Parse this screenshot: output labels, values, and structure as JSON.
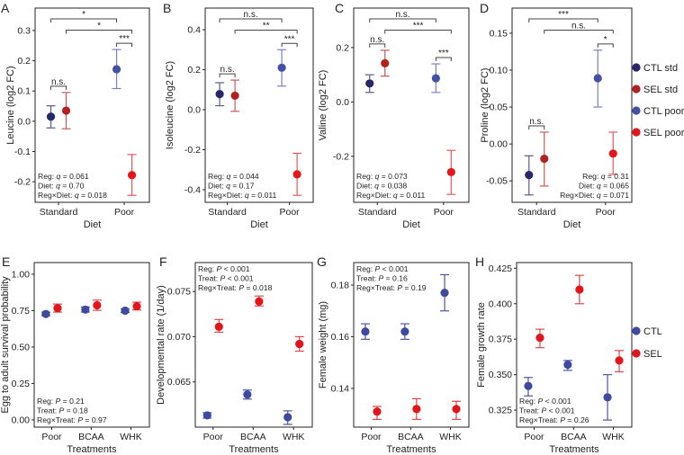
{
  "groups": {
    "CTL std": {
      "color": "#27276b",
      "bar": "#5a5a8e"
    },
    "SEL std": {
      "color": "#b3211f",
      "bar": "#c85a55"
    },
    "CTL poor": {
      "color": "#4350a3",
      "bar": "#7a82bd"
    },
    "SEL poor": {
      "color": "#e3161b",
      "bar": "#e85a5c"
    },
    "CTL": {
      "color": "#3d4aa0",
      "bar": "#4b57a6"
    },
    "SEL": {
      "color": "#e3151b",
      "bar": "#e0474a"
    }
  },
  "legends": {
    "top": [
      "CTL std",
      "SEL std",
      "CTL poor",
      "SEL poor"
    ],
    "bottom": [
      "CTL",
      "SEL"
    ]
  },
  "chart_data": [
    {
      "panel": "A",
      "type": "scatter",
      "ylabel": "Leucine (log2 FC)",
      "xlabel": "Diet",
      "categories": [
        "Standard",
        "Poor"
      ],
      "ylim": [
        -0.268,
        0.374
      ],
      "yticks": [
        -0.2,
        -0.1,
        0.0,
        0.1,
        0.2,
        0.3
      ],
      "ytick_labels": [
        "-0.2",
        "-0.1",
        "0.0",
        "0.1",
        "0.2",
        "0.3"
      ],
      "points": [
        {
          "group": "CTL std",
          "category": 0,
          "mean": 0.015,
          "lo": -0.022,
          "hi": 0.051
        },
        {
          "group": "SEL std",
          "category": 0,
          "mean": 0.035,
          "lo": -0.025,
          "hi": 0.095
        },
        {
          "group": "CTL poor",
          "category": 1,
          "mean": 0.172,
          "lo": 0.108,
          "hi": 0.237
        },
        {
          "group": "SEL poor",
          "category": 1,
          "mean": -0.178,
          "lo": -0.245,
          "hi": -0.11
        }
      ],
      "brackets": [
        {
          "label": "*",
          "from": 0,
          "to": 2
        },
        {
          "label": "*",
          "from": 1,
          "to": 3
        },
        {
          "label": "***",
          "from": 2,
          "to": 3
        },
        {
          "label": "n.s.",
          "from": 0,
          "to": 1
        }
      ],
      "stats_position": "bottom-left",
      "stats": [
        {
          "term": "Reg: ",
          "sym": "q",
          "value": " = 0.061"
        },
        {
          "term": "Diet: ",
          "sym": "q",
          "value": " = 0.70"
        },
        {
          "term": "Reg×Diet: ",
          "sym": "q",
          "value": " = 0.018"
        }
      ]
    },
    {
      "panel": "B",
      "type": "scatter",
      "ylabel": "Isoleucine (log2 FC)",
      "xlabel": "Diet",
      "categories": [
        "Standard",
        "Poor"
      ],
      "ylim": [
        -0.463,
        0.508
      ],
      "yticks": [
        -0.4,
        -0.2,
        0.0,
        0.2,
        0.4
      ],
      "ytick_labels": [
        "-0.4",
        "-0.2",
        "0.0",
        "0.2",
        "0.4"
      ],
      "points": [
        {
          "group": "CTL std",
          "category": 0,
          "mean": 0.078,
          "lo": 0.02,
          "hi": 0.135
        },
        {
          "group": "SEL std",
          "category": 0,
          "mean": 0.07,
          "lo": -0.008,
          "hi": 0.148
        },
        {
          "group": "CTL poor",
          "category": 1,
          "mean": 0.21,
          "lo": 0.118,
          "hi": 0.3
        },
        {
          "group": "SEL poor",
          "category": 1,
          "mean": -0.323,
          "lo": -0.428,
          "hi": -0.218
        }
      ],
      "brackets": [
        {
          "label": "n.s.",
          "from": 0,
          "to": 2
        },
        {
          "label": "**",
          "from": 1,
          "to": 3
        },
        {
          "label": "***",
          "from": 2,
          "to": 3
        },
        {
          "label": "n.s.",
          "from": 0,
          "to": 1
        }
      ],
      "stats_position": "bottom-left",
      "stats": [
        {
          "term": "Reg: ",
          "sym": "q",
          "value": " = 0.044"
        },
        {
          "term": "Diet: ",
          "sym": "q",
          "value": " = 0.17"
        },
        {
          "term": "Reg×Diet: ",
          "sym": "q",
          "value": " = 0.011"
        }
      ]
    },
    {
      "panel": "C",
      "type": "scatter",
      "ylabel": "Valine (log2 FC)",
      "xlabel": "Diet",
      "categories": [
        "Standard",
        "Poor"
      ],
      "ylim": [
        -0.369,
        0.345
      ],
      "yticks": [
        -0.2,
        0.0,
        0.2
      ],
      "ytick_labels": [
        "-0.2",
        "0.0",
        "0.2"
      ],
      "points": [
        {
          "group": "CTL std",
          "category": 0,
          "mean": 0.068,
          "lo": 0.035,
          "hi": 0.1
        },
        {
          "group": "SEL std",
          "category": 0,
          "mean": 0.142,
          "lo": 0.095,
          "hi": 0.19
        },
        {
          "group": "CTL poor",
          "category": 1,
          "mean": 0.087,
          "lo": 0.035,
          "hi": 0.14
        },
        {
          "group": "SEL poor",
          "category": 1,
          "mean": -0.258,
          "lo": -0.34,
          "hi": -0.178
        }
      ],
      "brackets": [
        {
          "label": "n.s.",
          "from": 0,
          "to": 2
        },
        {
          "label": "***",
          "from": 1,
          "to": 3
        },
        {
          "label": "***",
          "from": 2,
          "to": 3
        },
        {
          "label": "n.s.",
          "from": 0,
          "to": 1
        }
      ],
      "stats_position": "bottom-left",
      "stats": [
        {
          "term": "Reg: ",
          "sym": "q",
          "value": " = 0.073"
        },
        {
          "term": "Diet: ",
          "sym": "q",
          "value": " = 0.038"
        },
        {
          "term": "Reg×Diet: ",
          "sym": "q",
          "value": " = 0.011"
        }
      ]
    },
    {
      "panel": "D",
      "type": "scatter",
      "ylabel": "Proline (log2 FC)",
      "xlabel": "Diet",
      "categories": [
        "Standard",
        "Poor"
      ],
      "ylim": [
        -0.079,
        0.184
      ],
      "yticks": [
        -0.05,
        0.0,
        0.05,
        0.1,
        0.15
      ],
      "ytick_labels": [
        "-0.05",
        "0.00",
        "0.05",
        "0.10",
        "0.15"
      ],
      "points": [
        {
          "group": "CTL std",
          "category": 0,
          "mean": -0.042,
          "lo": -0.069,
          "hi": -0.016
        },
        {
          "group": "SEL std",
          "category": 0,
          "mean": -0.02,
          "lo": -0.057,
          "hi": 0.016
        },
        {
          "group": "CTL poor",
          "category": 1,
          "mean": 0.089,
          "lo": 0.05,
          "hi": 0.127
        },
        {
          "group": "SEL poor",
          "category": 1,
          "mean": -0.013,
          "lo": -0.041,
          "hi": 0.016
        }
      ],
      "brackets": [
        {
          "label": "***",
          "from": 0,
          "to": 2
        },
        {
          "label": "n.s.",
          "from": 1,
          "to": 3
        },
        {
          "label": "*",
          "from": 2,
          "to": 3
        },
        {
          "label": "n.s.",
          "from": 0,
          "to": 1
        }
      ],
      "stats_position": "bottom-right",
      "stats": [
        {
          "term": "Reg: ",
          "sym": "q",
          "value": " = 0.31"
        },
        {
          "term": "Diet: ",
          "sym": "q",
          "value": " = 0.065"
        },
        {
          "term": "Reg×Diet: ",
          "sym": "q",
          "value": " = 0.071"
        }
      ]
    },
    {
      "panel": "E",
      "type": "scatter",
      "ylabel": "Egg to adult survival probability",
      "xlabel": "Treatments",
      "categories": [
        "Poor",
        "BCAA",
        "WHK"
      ],
      "ylim": [
        -0.05,
        1.08
      ],
      "yticks": [
        0,
        0.25,
        0.5,
        0.75,
        1.0
      ],
      "ytick_labels": [
        "0.00",
        "0.25",
        "0.50",
        "0.75",
        "1.00"
      ],
      "points": [
        {
          "group": "CTL",
          "category": 0,
          "mean": 0.727,
          "lo": 0.715,
          "hi": 0.74
        },
        {
          "group": "SEL",
          "category": 0,
          "mean": 0.767,
          "lo": 0.74,
          "hi": 0.795
        },
        {
          "group": "CTL",
          "category": 1,
          "mean": 0.757,
          "lo": 0.74,
          "hi": 0.775
        },
        {
          "group": "SEL",
          "category": 1,
          "mean": 0.787,
          "lo": 0.752,
          "hi": 0.822
        },
        {
          "group": "CTL",
          "category": 2,
          "mean": 0.75,
          "lo": 0.738,
          "hi": 0.762
        },
        {
          "group": "SEL",
          "category": 2,
          "mean": 0.78,
          "lo": 0.755,
          "hi": 0.808
        }
      ],
      "brackets": [],
      "stats_position": "bottom-left",
      "stats": [
        {
          "term": "Reg: ",
          "sym": "P",
          "value": " = 0.21"
        },
        {
          "term": "Treat: ",
          "sym": "P",
          "value": " = 0.18"
        },
        {
          "term": "Reg×Treat: ",
          "sym": "P",
          "value": " = 0.97"
        }
      ]
    },
    {
      "panel": "F",
      "type": "scatter",
      "ylabel": "Developmental rate (1/day)",
      "xlabel": "Treatments",
      "categories": [
        "Poor",
        "BCAA",
        "WHK"
      ],
      "ylim": [
        0.06,
        0.0782
      ],
      "yticks": [
        0.065,
        0.07,
        0.075
      ],
      "ytick_labels": [
        "0.065",
        "0.070",
        "0.075"
      ],
      "points": [
        {
          "group": "CTL",
          "category": 0,
          "mean": 0.0613,
          "lo": 0.061,
          "hi": 0.0616
        },
        {
          "group": "SEL",
          "category": 0,
          "mean": 0.0711,
          "lo": 0.0705,
          "hi": 0.0719
        },
        {
          "group": "CTL",
          "category": 1,
          "mean": 0.0636,
          "lo": 0.0631,
          "hi": 0.0641
        },
        {
          "group": "SEL",
          "category": 1,
          "mean": 0.0739,
          "lo": 0.0734,
          "hi": 0.0745
        },
        {
          "group": "CTL",
          "category": 2,
          "mean": 0.0611,
          "lo": 0.0603,
          "hi": 0.0618
        },
        {
          "group": "SEL",
          "category": 2,
          "mean": 0.0692,
          "lo": 0.0684,
          "hi": 0.07
        }
      ],
      "brackets": [],
      "stats_position": "top-left",
      "stats": [
        {
          "term": "Reg: ",
          "sym": "P",
          "value": " < 0.001"
        },
        {
          "term": "Treat: ",
          "sym": "P",
          "value": " < 0.001"
        },
        {
          "term": "Reg×Treat: ",
          "sym": "P",
          "value": " = 0.018"
        }
      ]
    },
    {
      "panel": "G",
      "type": "scatter",
      "ylabel": "Female weight (mg)",
      "xlabel": "Treatments",
      "categories": [
        "Poor",
        "BCAA",
        "WHK"
      ],
      "ylim": [
        0.125,
        0.1887
      ],
      "yticks": [
        0.14,
        0.16,
        0.18
      ],
      "ytick_labels": [
        "0.14",
        "0.16",
        "0.18"
      ],
      "points": [
        {
          "group": "CTL",
          "category": 0,
          "mean": 0.162,
          "lo": 0.159,
          "hi": 0.165
        },
        {
          "group": "SEL",
          "category": 0,
          "mean": 0.131,
          "lo": 0.128,
          "hi": 0.133
        },
        {
          "group": "CTL",
          "category": 1,
          "mean": 0.162,
          "lo": 0.159,
          "hi": 0.165
        },
        {
          "group": "SEL",
          "category": 1,
          "mean": 0.132,
          "lo": 0.128,
          "hi": 0.136
        },
        {
          "group": "CTL",
          "category": 2,
          "mean": 0.177,
          "lo": 0.17,
          "hi": 0.184
        },
        {
          "group": "SEL",
          "category": 2,
          "mean": 0.132,
          "lo": 0.128,
          "hi": 0.135
        }
      ],
      "brackets": [],
      "stats_position": "top-left",
      "stats": [
        {
          "term": "Reg: ",
          "sym": "P",
          "value": " < 0.001"
        },
        {
          "term": "Treat: ",
          "sym": "P",
          "value": " = 0.16"
        },
        {
          "term": "Reg×Treat: ",
          "sym": "P",
          "value": " = 0.19"
        }
      ]
    },
    {
      "panel": "H",
      "type": "scatter",
      "ylabel": "Female growth rate",
      "xlabel": "Treatments",
      "categories": [
        "Poor",
        "BCAA",
        "WHK"
      ],
      "ylim": [
        0.313,
        0.429
      ],
      "yticks": [
        0.325,
        0.35,
        0.375,
        0.4,
        0.425
      ],
      "ytick_labels": [
        "0.325",
        "0.350",
        "0.375",
        "0.400",
        "0.425"
      ],
      "points": [
        {
          "group": "CTL",
          "category": 0,
          "mean": 0.342,
          "lo": 0.335,
          "hi": 0.348
        },
        {
          "group": "SEL",
          "category": 0,
          "mean": 0.376,
          "lo": 0.369,
          "hi": 0.382
        },
        {
          "group": "CTL",
          "category": 1,
          "mean": 0.357,
          "lo": 0.353,
          "hi": 0.36
        },
        {
          "group": "SEL",
          "category": 1,
          "mean": 0.41,
          "lo": 0.4,
          "hi": 0.42
        },
        {
          "group": "CTL",
          "category": 2,
          "mean": 0.334,
          "lo": 0.318,
          "hi": 0.35
        },
        {
          "group": "SEL",
          "category": 2,
          "mean": 0.36,
          "lo": 0.352,
          "hi": 0.367
        }
      ],
      "brackets": [],
      "stats_position": "bottom-left",
      "stats": [
        {
          "term": "Reg: ",
          "sym": "P",
          "value": " < 0.001"
        },
        {
          "term": "Treat: ",
          "sym": "P",
          "value": " < 0.001"
        },
        {
          "term": "Reg×Treat: ",
          "sym": "P",
          "value": " = 0.26"
        }
      ]
    }
  ]
}
